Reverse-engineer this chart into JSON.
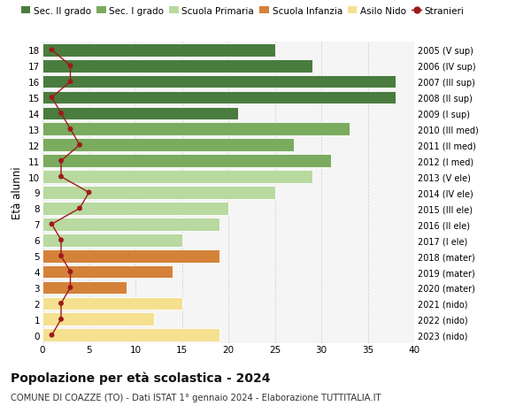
{
  "ages": [
    18,
    17,
    16,
    15,
    14,
    13,
    12,
    11,
    10,
    9,
    8,
    7,
    6,
    5,
    4,
    3,
    2,
    1,
    0
  ],
  "years_labels": [
    "2005 (V sup)",
    "2006 (IV sup)",
    "2007 (III sup)",
    "2008 (II sup)",
    "2009 (I sup)",
    "2010 (III med)",
    "2011 (II med)",
    "2012 (I med)",
    "2013 (V ele)",
    "2014 (IV ele)",
    "2015 (III ele)",
    "2016 (II ele)",
    "2017 (I ele)",
    "2018 (mater)",
    "2019 (mater)",
    "2020 (mater)",
    "2021 (nido)",
    "2022 (nido)",
    "2023 (nido)"
  ],
  "bar_values": [
    25,
    29,
    38,
    38,
    21,
    33,
    27,
    31,
    29,
    25,
    20,
    19,
    15,
    19,
    14,
    9,
    15,
    12,
    19
  ],
  "bar_colors": [
    "#4a7c3f",
    "#4a7c3f",
    "#4a7c3f",
    "#4a7c3f",
    "#4a7c3f",
    "#7aab5e",
    "#7aab5e",
    "#7aab5e",
    "#b8d9a0",
    "#b8d9a0",
    "#b8d9a0",
    "#b8d9a0",
    "#b8d9a0",
    "#d4823a",
    "#d4823a",
    "#d4823a",
    "#f5e090",
    "#f5e090",
    "#f5e090"
  ],
  "stranieri_values": [
    1,
    3,
    3,
    1,
    2,
    3,
    4,
    2,
    2,
    5,
    4,
    1,
    2,
    2,
    3,
    3,
    2,
    2,
    1
  ],
  "stranieri_color": "#9e1a1a",
  "legend_items": [
    {
      "label": "Sec. II grado",
      "color": "#4a7c3f"
    },
    {
      "label": "Sec. I grado",
      "color": "#7aab5e"
    },
    {
      "label": "Scuola Primaria",
      "color": "#b8d9a0"
    },
    {
      "label": "Scuola Infanzia",
      "color": "#d4823a"
    },
    {
      "label": "Asilo Nido",
      "color": "#f5e090"
    },
    {
      "label": "Stranieri",
      "color": "#9e1a1a"
    }
  ],
  "ylabel_left": "Età alunni",
  "xlim": [
    0,
    40
  ],
  "xticks": [
    0,
    5,
    10,
    15,
    20,
    25,
    30,
    35,
    40
  ],
  "title": "Popolazione per età scolastica - 2024",
  "subtitle": "COMUNE DI COAZZE (TO) - Dati ISTAT 1° gennaio 2024 - Elaborazione TUTTITALIA.IT",
  "bg_color": "#ffffff",
  "plot_bg_color": "#f5f5f5"
}
